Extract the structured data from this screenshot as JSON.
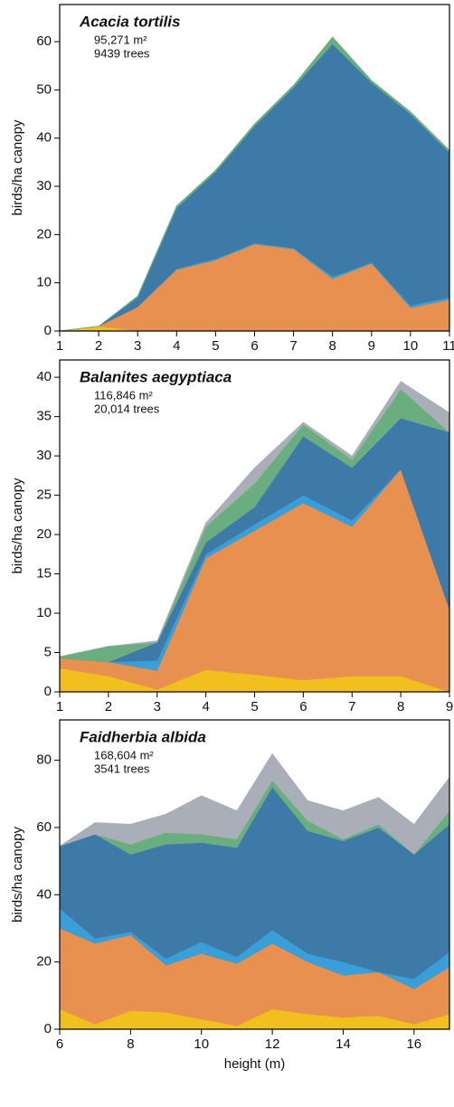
{
  "chart_data": [
    {
      "type": "area",
      "stacked": true,
      "title": "Acacia tortilis",
      "annotations": [
        "95,271 m²",
        "9439 trees"
      ],
      "ylabel": "birds/ha canopy",
      "x": [
        1,
        2,
        3,
        4,
        5,
        6,
        7,
        8,
        9,
        10,
        11
      ],
      "xlim": [
        1,
        11
      ],
      "xticks": [
        1,
        2,
        3,
        4,
        5,
        6,
        7,
        8,
        9,
        10,
        11
      ],
      "ylim": [
        0,
        67.7
      ],
      "yticks": [
        0,
        10,
        20,
        30,
        40,
        50,
        60
      ],
      "series": [
        {
          "color": "#f2c01e",
          "values": [
            0,
            1,
            0,
            0,
            0,
            0,
            0,
            0,
            0,
            0,
            0
          ]
        },
        {
          "color": "#e8904f",
          "values": [
            0,
            0,
            5,
            12.7,
            14.7,
            18,
            17,
            10.8,
            14,
            4.8,
            6.5
          ]
        },
        {
          "color": "#3a9fd8",
          "values": [
            0,
            0,
            0,
            0.2,
            0.3,
            0.2,
            0.2,
            0.5,
            0.2,
            0.5,
            0.5
          ]
        },
        {
          "color": "#3e7aa8",
          "values": [
            0,
            0,
            2,
            12.6,
            18,
            24.3,
            33.3,
            48.2,
            37.3,
            39.7,
            30
          ]
        },
        {
          "color": "#6aae7f",
          "values": [
            0,
            0,
            0.3,
            0.5,
            0.4,
            0.5,
            0.5,
            1.5,
            0.5,
            0.5,
            0.5
          ]
        }
      ]
    },
    {
      "type": "area",
      "stacked": true,
      "title": "Balanites aegyptiaca",
      "annotations": [
        "116,846 m²",
        "20,014 trees"
      ],
      "ylabel": "birds/ha canopy",
      "x": [
        1,
        2,
        3,
        4,
        5,
        6,
        7,
        8,
        9
      ],
      "xlim": [
        1,
        9
      ],
      "xticks": [
        1,
        2,
        3,
        4,
        5,
        6,
        7,
        8,
        9
      ],
      "ylim": [
        0,
        42.2
      ],
      "yticks": [
        0,
        5,
        10,
        15,
        20,
        25,
        30,
        35,
        40
      ],
      "series": [
        {
          "color": "#f2c01e",
          "values": [
            3,
            2,
            0.3,
            2.8,
            2.2,
            1.5,
            2,
            2,
            0
          ]
        },
        {
          "color": "#e8904f",
          "values": [
            1.3,
            1.8,
            2.4,
            14.2,
            18.3,
            22.5,
            19,
            26.3,
            10.5
          ]
        },
        {
          "color": "#3a9fd8",
          "values": [
            0,
            0,
            1.3,
            0.5,
            0.8,
            1,
            0.8,
            0,
            0
          ]
        },
        {
          "color": "#3e7aa8",
          "values": [
            0,
            0,
            2.3,
            1.5,
            2.2,
            7.5,
            6.7,
            6.5,
            22.5
          ]
        },
        {
          "color": "#6aae7f",
          "values": [
            0.2,
            2,
            0,
            2,
            3,
            1.5,
            1,
            3.7,
            0
          ]
        },
        {
          "color": "#a9aeb8",
          "values": [
            0,
            0,
            0.2,
            0.5,
            2,
            0.3,
            0.5,
            1,
            2.5
          ]
        }
      ]
    },
    {
      "type": "area",
      "stacked": true,
      "title": "Faidherbia albida",
      "annotations": [
        "168,604 m²",
        "3541 trees"
      ],
      "ylabel": "birds/ha canopy",
      "xlabel": "height (m)",
      "x": [
        6,
        7,
        8,
        9,
        10,
        11,
        12,
        13,
        14,
        15,
        16,
        17
      ],
      "xlim": [
        6,
        17
      ],
      "xticks": [
        6,
        8,
        10,
        12,
        14,
        16
      ],
      "ylim": [
        0,
        92
      ],
      "yticks": [
        0,
        20,
        40,
        60,
        80
      ],
      "series": [
        {
          "color": "#f2c01e",
          "values": [
            6,
            1.5,
            5.5,
            5,
            3,
            1,
            6,
            4.5,
            3.5,
            4,
            1.5,
            4.5
          ]
        },
        {
          "color": "#e8904f",
          "values": [
            24,
            24,
            22.5,
            14,
            19.5,
            18.5,
            19.5,
            15.5,
            12.5,
            13,
            10.5,
            14
          ]
        },
        {
          "color": "#3a9fd8",
          "values": [
            6,
            1.5,
            1,
            2,
            3.5,
            2,
            4,
            2.5,
            4,
            0,
            3,
            4.5
          ]
        },
        {
          "color": "#3e7aa8",
          "values": [
            18.5,
            31,
            23,
            34,
            29.5,
            32.5,
            42.5,
            36.5,
            36,
            43,
            37,
            38
          ]
        },
        {
          "color": "#6aae7f",
          "values": [
            0,
            0,
            3,
            3.5,
            2.5,
            2.5,
            2,
            3,
            0.5,
            1,
            0,
            4
          ]
        },
        {
          "color": "#a9aeb8",
          "values": [
            0,
            3.5,
            6,
            5.5,
            11.5,
            8.5,
            8,
            6,
            8.5,
            8,
            9,
            10
          ]
        }
      ]
    }
  ]
}
